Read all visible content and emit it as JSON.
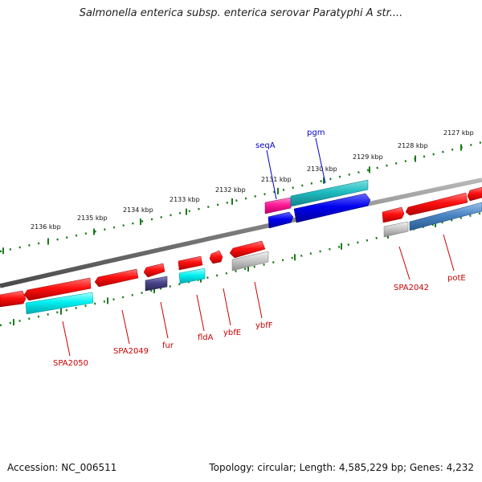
{
  "title": "Salmonella enterica subsp. enterica serovar Paratyphi A str....",
  "footer": {
    "accession": "Accession: NC_006511",
    "topology": "Topology: circular; Length: 4,585,229 bp; Genes: 4,232"
  },
  "colors": {
    "backbone": "#7a7a7a",
    "tick": "#1a7a1a",
    "gene_label": "#cc0000",
    "highlight_label": "#0000cc"
  },
  "scale_labels_outer": [
    "2127 kbp",
    "2128 kbp",
    "2129 kbp",
    "2130 kbp",
    "2131 kbp",
    "2132 kbp",
    "2133 kbp",
    "2134 kbp",
    "2135 kbp",
    "2136 kbp"
  ],
  "gene_labels": [
    {
      "id": "seqA",
      "text": "seqA",
      "color": "#0000cc"
    },
    {
      "id": "pgm",
      "text": "pgm",
      "color": "#0000cc"
    },
    {
      "id": "SPA2042",
      "text": "SPA2042",
      "color": "#cc0000"
    },
    {
      "id": "potE",
      "text": "potE",
      "color": "#cc0000"
    },
    {
      "id": "SPA2050",
      "text": "SPA2050",
      "color": "#cc0000"
    },
    {
      "id": "SPA2049",
      "text": "SPA2049",
      "color": "#cc0000"
    },
    {
      "id": "fur",
      "text": "fur",
      "color": "#cc0000"
    },
    {
      "id": "fldA",
      "text": "fldA",
      "color": "#cc0000"
    },
    {
      "id": "ybfE",
      "text": "ybfE",
      "color": "#cc0000"
    },
    {
      "id": "ybfF",
      "text": "ybfF",
      "color": "#cc0000"
    }
  ]
}
